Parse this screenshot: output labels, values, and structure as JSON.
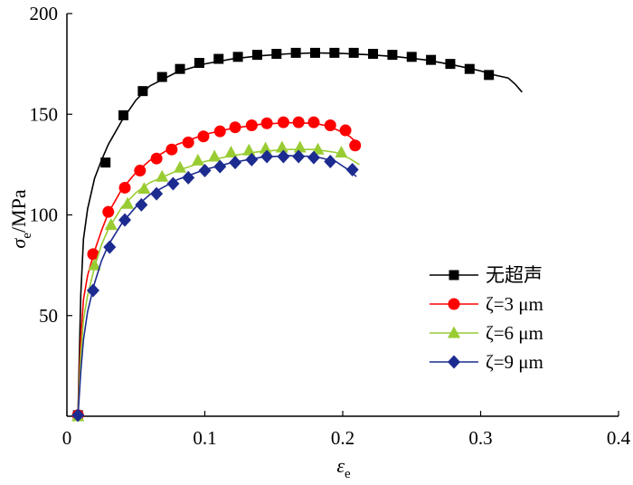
{
  "chart_data": {
    "type": "line",
    "xlim": [
      0,
      0.4
    ],
    "ylim": [
      0,
      200
    ],
    "x_ticks": [
      0,
      0.1,
      0.2,
      0.3,
      0.4
    ],
    "x_tick_labels": [
      "0",
      "0.1",
      "0.2",
      "0.3",
      "0.4"
    ],
    "y_ticks": [
      50,
      100,
      150,
      200
    ],
    "y_tick_labels": [
      "50",
      "100",
      "150",
      "200"
    ],
    "xlabel": {
      "symbol": "ε",
      "subscript": "e"
    },
    "ylabel": {
      "symbol": "σ",
      "subscript": "e",
      "suffix": "/MPa"
    },
    "grid": false,
    "legend_position": "bottom-right",
    "series": [
      {
        "name": "无超声",
        "color": "#000000",
        "marker": "square",
        "curve": [
          [
            0.008,
            0
          ],
          [
            0.01,
            60
          ],
          [
            0.012,
            88
          ],
          [
            0.015,
            103
          ],
          [
            0.02,
            118
          ],
          [
            0.025,
            127
          ],
          [
            0.03,
            135
          ],
          [
            0.04,
            147
          ],
          [
            0.05,
            157
          ],
          [
            0.06,
            164
          ],
          [
            0.08,
            171
          ],
          [
            0.1,
            175
          ],
          [
            0.12,
            177.5
          ],
          [
            0.14,
            179
          ],
          [
            0.16,
            180
          ],
          [
            0.18,
            180.5
          ],
          [
            0.2,
            180.2
          ],
          [
            0.22,
            179.5
          ],
          [
            0.24,
            178.5
          ],
          [
            0.26,
            177
          ],
          [
            0.28,
            174.5
          ],
          [
            0.3,
            171.5
          ],
          [
            0.31,
            169.5
          ],
          [
            0.32,
            168
          ],
          [
            0.325,
            165
          ],
          [
            0.33,
            161
          ]
        ],
        "points": [
          [
            0.008,
            0.5
          ],
          [
            0.028,
            126
          ],
          [
            0.041,
            149.5
          ],
          [
            0.055,
            161.5
          ],
          [
            0.069,
            168.5
          ],
          [
            0.082,
            172.5
          ],
          [
            0.096,
            175.5
          ],
          [
            0.11,
            177.5
          ],
          [
            0.124,
            178.5
          ],
          [
            0.138,
            179.5
          ],
          [
            0.152,
            180
          ],
          [
            0.166,
            180.5
          ],
          [
            0.18,
            180.5
          ],
          [
            0.194,
            180.5
          ],
          [
            0.208,
            180.5
          ],
          [
            0.222,
            180
          ],
          [
            0.236,
            179.5
          ],
          [
            0.25,
            178.5
          ],
          [
            0.264,
            177
          ],
          [
            0.278,
            175
          ],
          [
            0.292,
            172.5
          ],
          [
            0.306,
            169.5
          ]
        ]
      },
      {
        "name": "ζ=3 μm",
        "color": "#ff0000",
        "marker": "circle",
        "curve": [
          [
            0.008,
            0
          ],
          [
            0.01,
            38
          ],
          [
            0.012,
            58
          ],
          [
            0.015,
            70
          ],
          [
            0.02,
            82
          ],
          [
            0.025,
            92
          ],
          [
            0.03,
            101
          ],
          [
            0.04,
            113
          ],
          [
            0.05,
            121
          ],
          [
            0.06,
            127
          ],
          [
            0.08,
            135
          ],
          [
            0.1,
            140
          ],
          [
            0.12,
            143
          ],
          [
            0.14,
            145
          ],
          [
            0.16,
            145.8
          ],
          [
            0.18,
            145.5
          ],
          [
            0.19,
            144
          ],
          [
            0.2,
            141
          ],
          [
            0.205,
            139
          ],
          [
            0.21,
            136
          ]
        ],
        "points": [
          [
            0.008,
            0.5
          ],
          [
            0.019,
            80.5
          ],
          [
            0.03,
            101.5
          ],
          [
            0.042,
            113.5
          ],
          [
            0.053,
            122
          ],
          [
            0.065,
            128
          ],
          [
            0.076,
            132.5
          ],
          [
            0.088,
            136
          ],
          [
            0.099,
            139
          ],
          [
            0.111,
            141.5
          ],
          [
            0.122,
            143.5
          ],
          [
            0.134,
            144.5
          ],
          [
            0.145,
            145.5
          ],
          [
            0.157,
            146
          ],
          [
            0.168,
            146
          ],
          [
            0.179,
            146
          ],
          [
            0.191,
            144.5
          ],
          [
            0.202,
            142
          ],
          [
            0.209,
            134.5
          ]
        ]
      },
      {
        "name": "ζ=6 μm",
        "color": "#99cc33",
        "marker": "triangle",
        "curve": [
          [
            0.008,
            0
          ],
          [
            0.01,
            30
          ],
          [
            0.012,
            48
          ],
          [
            0.015,
            60
          ],
          [
            0.02,
            74
          ],
          [
            0.025,
            85
          ],
          [
            0.03,
            93
          ],
          [
            0.04,
            104
          ],
          [
            0.05,
            111
          ],
          [
            0.06,
            116
          ],
          [
            0.08,
            122
          ],
          [
            0.1,
            126.5
          ],
          [
            0.12,
            129.5
          ],
          [
            0.14,
            131.5
          ],
          [
            0.16,
            132.5
          ],
          [
            0.18,
            132.5
          ],
          [
            0.195,
            131
          ],
          [
            0.205,
            128
          ],
          [
            0.212,
            125
          ]
        ],
        "points": [
          [
            0.008,
            0
          ],
          [
            0.02,
            75
          ],
          [
            0.032,
            95
          ],
          [
            0.044,
            105.5
          ],
          [
            0.056,
            113
          ],
          [
            0.069,
            119
          ],
          [
            0.082,
            123.5
          ],
          [
            0.095,
            127
          ],
          [
            0.107,
            129
          ],
          [
            0.119,
            131
          ],
          [
            0.132,
            132
          ],
          [
            0.144,
            133
          ],
          [
            0.156,
            133.5
          ],
          [
            0.169,
            133.5
          ],
          [
            0.182,
            132.5
          ],
          [
            0.199,
            131
          ]
        ]
      },
      {
        "name": "ζ=9 μm",
        "color": "#1c2b8f",
        "marker": "diamond",
        "curve": [
          [
            0.008,
            0
          ],
          [
            0.01,
            22
          ],
          [
            0.012,
            38
          ],
          [
            0.015,
            52
          ],
          [
            0.02,
            66
          ],
          [
            0.025,
            77
          ],
          [
            0.03,
            85
          ],
          [
            0.04,
            96
          ],
          [
            0.05,
            104
          ],
          [
            0.06,
            110
          ],
          [
            0.08,
            117.5
          ],
          [
            0.1,
            122.5
          ],
          [
            0.12,
            126
          ],
          [
            0.14,
            128.5
          ],
          [
            0.16,
            129.5
          ],
          [
            0.18,
            129
          ],
          [
            0.195,
            126.5
          ],
          [
            0.205,
            122
          ],
          [
            0.21,
            119
          ]
        ],
        "points": [
          [
            0.008,
            0.5
          ],
          [
            0.019,
            62.5
          ],
          [
            0.031,
            84
          ],
          [
            0.042,
            97.5
          ],
          [
            0.054,
            105
          ],
          [
            0.065,
            110.5
          ],
          [
            0.077,
            115.5
          ],
          [
            0.088,
            118.5
          ],
          [
            0.1,
            122
          ],
          [
            0.111,
            124
          ],
          [
            0.122,
            126
          ],
          [
            0.134,
            127.5
          ],
          [
            0.145,
            129
          ],
          [
            0.157,
            129
          ],
          [
            0.168,
            129
          ],
          [
            0.179,
            128.5
          ],
          [
            0.191,
            126.5
          ],
          [
            0.207,
            122.5
          ]
        ]
      }
    ]
  },
  "legend": {
    "items": [
      {
        "label": "无超声",
        "color": "#000000",
        "marker": "square"
      },
      {
        "label": "ζ=3 μm",
        "color": "#ff0000",
        "marker": "circle"
      },
      {
        "label": "ζ=6 μm",
        "color": "#99cc33",
        "marker": "triangle"
      },
      {
        "label": "ζ=9 μm",
        "color": "#1c2b8f",
        "marker": "diamond"
      }
    ]
  }
}
